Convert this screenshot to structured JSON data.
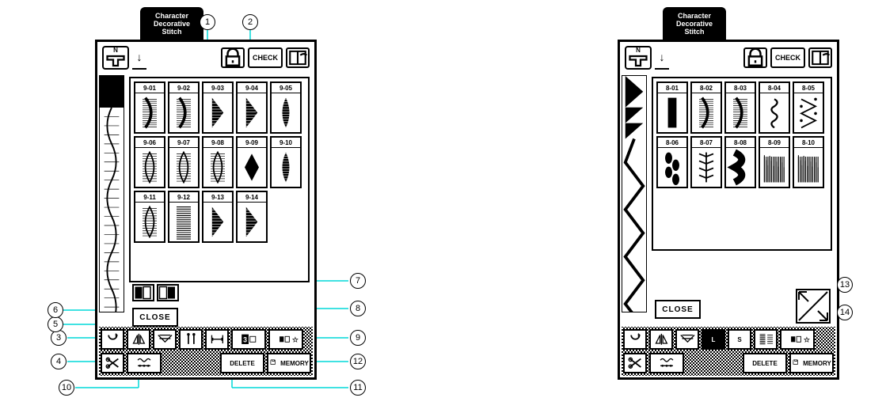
{
  "colors": {
    "callout_line": "#00d8d8",
    "outline": "#000000",
    "background": "#ffffff"
  },
  "tab_label_lines": [
    "Character",
    "Decorative",
    "Stitch"
  ],
  "topbar": {
    "foot_label": "N",
    "lock_icon": "lock",
    "check_label": "CHECK",
    "help_icon": "book"
  },
  "close_label": "CLOSE",
  "left_panel": {
    "stitch_prefix": "9-",
    "stitch_codes": [
      "9-01",
      "9-02",
      "9-03",
      "9-04",
      "9-05",
      "9-06",
      "9-07",
      "9-08",
      "9-09",
      "9-10",
      "9-11",
      "9-12",
      "9-13",
      "9-14"
    ],
    "shapes": [
      "rcurve",
      "rcurve",
      "wedge",
      "wedge",
      "feather",
      "leaf",
      "leaf",
      "leaf",
      "diamond",
      "feather",
      "leaf",
      "lines",
      "wedge",
      "wedge"
    ]
  },
  "right_panel": {
    "stitch_prefix": "8-",
    "stitch_codes": [
      "8-01",
      "8-02",
      "8-03",
      "8-04",
      "8-05",
      "8-06",
      "8-07",
      "8-08",
      "8-09",
      "8-10"
    ],
    "shapes": [
      "bar",
      "rcurve",
      "rcurve",
      "spiral",
      "zigdot",
      "leaves",
      "feather2",
      "swave",
      "grass",
      "grass"
    ]
  },
  "controls": {
    "row1": [
      {
        "name": "reinforce-button",
        "icon": "loop",
        "w": "w1"
      },
      {
        "name": "mirror-h-button",
        "icon": "mirror-h",
        "w": "w1"
      },
      {
        "name": "mirror-v-button",
        "icon": "mirror-v",
        "w": "w1"
      },
      {
        "name": "needle-mode-button",
        "icon": "needles",
        "w": "w1"
      },
      {
        "name": "spacing-button",
        "icon": "spacing",
        "w": "w1"
      },
      {
        "name": "elongation-button",
        "icon": "elong",
        "w": "w2"
      },
      {
        "name": "repeat-button",
        "icon": "repeat",
        "w": "w2"
      }
    ],
    "row2": [
      {
        "name": "cut-button",
        "icon": "scissors",
        "w": "w1"
      },
      {
        "name": "thread-button",
        "icon": "thread",
        "w": "w2"
      },
      {
        "name": "delete-button",
        "label": "DELETE",
        "w": "w3"
      },
      {
        "name": "memory-button",
        "label_prefix_icon": "memory",
        "label": "MEMORY",
        "w": "w3"
      }
    ]
  },
  "controls_right": {
    "row1": [
      {
        "name": "reinforce-button",
        "icon": "loop",
        "w": "w1"
      },
      {
        "name": "mirror-h-button",
        "icon": "mirror-h",
        "w": "w1"
      },
      {
        "name": "mirror-v-button",
        "icon": "mirror-v",
        "w": "w1"
      },
      {
        "name": "size-large-button",
        "label": "L",
        "w": "w1",
        "inverted": true
      },
      {
        "name": "size-small-button",
        "label": "S",
        "w": "w1"
      },
      {
        "name": "density-button",
        "icon": "density",
        "w": "w1"
      },
      {
        "name": "repeat-button",
        "icon": "repeat",
        "w": "w2"
      }
    ],
    "row2": [
      {
        "name": "cut-button",
        "icon": "scissors",
        "w": "w1"
      },
      {
        "name": "thread-button",
        "icon": "thread",
        "w": "w2"
      },
      {
        "name": "delete-button",
        "label": "DELETE",
        "w": "w3"
      },
      {
        "name": "memory-button",
        "label_prefix_icon": "memory",
        "label": "MEMORY",
        "w": "w3"
      }
    ]
  },
  "callouts": {
    "left_nums": [
      "1",
      "2",
      "3",
      "4",
      "5",
      "6",
      "7",
      "8",
      "9",
      "10",
      "11",
      "12"
    ],
    "right_nums": [
      "13",
      "14"
    ]
  }
}
